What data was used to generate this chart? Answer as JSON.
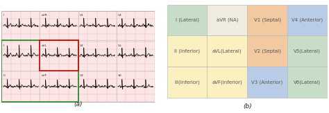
{
  "table": {
    "cells": [
      {
        "row": 0,
        "col": 0,
        "text": "I (Lateral)",
        "bg": "#c8ddc8"
      },
      {
        "row": 0,
        "col": 1,
        "text": "aVR (NA)",
        "bg": "#f0ece0"
      },
      {
        "row": 0,
        "col": 2,
        "text": "V1 (Septal)",
        "bg": "#f2c9a0"
      },
      {
        "row": 0,
        "col": 3,
        "text": "V4 (Anterior)",
        "bg": "#b8cce8"
      },
      {
        "row": 1,
        "col": 0,
        "text": "II (Inferior)",
        "bg": "#faf0c0"
      },
      {
        "row": 1,
        "col": 1,
        "text": "aVL(Lateral)",
        "bg": "#faf0c0"
      },
      {
        "row": 1,
        "col": 2,
        "text": "V2 (Septal)",
        "bg": "#f2c9a0"
      },
      {
        "row": 1,
        "col": 3,
        "text": "V5(Lateral)",
        "bg": "#c8ddc8"
      },
      {
        "row": 2,
        "col": 0,
        "text": "III(Inferior)",
        "bg": "#faf0c0"
      },
      {
        "row": 2,
        "col": 1,
        "text": "aVF(Inferior)",
        "bg": "#faf0c0"
      },
      {
        "row": 2,
        "col": 2,
        "text": "V3 (Anterior)",
        "bg": "#b8cce8"
      },
      {
        "row": 2,
        "col": 3,
        "text": "V6(Lateral)",
        "bg": "#c8ddc8"
      }
    ],
    "nrows": 3,
    "ncols": 4
  },
  "label_a": "(a)",
  "label_b": "(b)",
  "green_box_color": "#2e8b2e",
  "red_box_color": "#cc1111",
  "text_color": "#555555",
  "font_size": 5.0,
  "label_font_size": 6.5,
  "ecg_bg": "#fde8e8",
  "ecg_grid_major": "#e8a8a8",
  "ecg_grid_minor": "#f2caca",
  "ecg_line_color": "#111111",
  "outer_border_color": "#888888"
}
